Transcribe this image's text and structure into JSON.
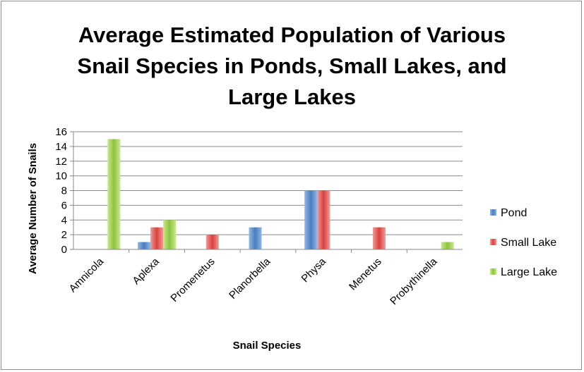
{
  "chart_data": {
    "type": "bar",
    "title_lines": [
      "Average Estimated Population of Various",
      "Snail Species in Ponds, Small Lakes, and",
      "Large Lakes"
    ],
    "xlabel": "Snail Species",
    "ylabel": "Average Number of Snails",
    "categories": [
      "Amnicola",
      "Aplexa",
      "Promenetus",
      "Planorbella",
      "Physa",
      "Menetus",
      "Probythinella"
    ],
    "series": [
      {
        "name": "Pond",
        "values": [
          0,
          1,
          0,
          3,
          8,
          0,
          0
        ],
        "color": "#4a7ebb",
        "light": "#8fb6ea"
      },
      {
        "name": "Small Lake",
        "values": [
          0,
          3,
          2,
          0,
          8,
          3,
          0
        ],
        "color": "#d9413d",
        "light": "#f09b98"
      },
      {
        "name": "Large Lake",
        "values": [
          15,
          4,
          0,
          0,
          0,
          0,
          1
        ],
        "color": "#8fc33f",
        "light": "#c6ea8a"
      }
    ],
    "ylim": [
      0,
      16
    ],
    "yticks": [
      "0",
      "2",
      "4",
      "6",
      "8",
      "10",
      "12",
      "14",
      "16"
    ],
    "grid": true,
    "legend": "right"
  }
}
